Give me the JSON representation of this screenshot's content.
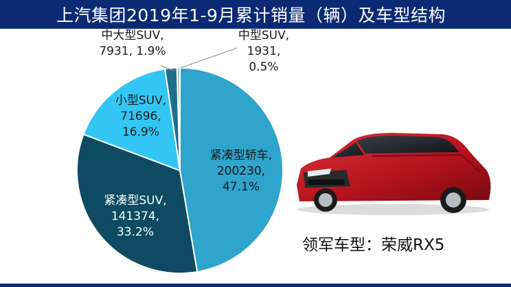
{
  "header": {
    "title": "上汽集团2019年1-9月累计销量（辆）及车型结构"
  },
  "caption": "领军车型：荣威RX5",
  "chart_data": {
    "type": "pie",
    "title": "上汽集团2019年1-9月累计销量（辆）及车型结构",
    "slices": [
      {
        "name": "紧凑型轿车",
        "value": 200230,
        "percent": "47.1%",
        "color": "#2fa4cc"
      },
      {
        "name": "紧凑型SUV",
        "value": 141374,
        "percent": "33.2%",
        "color": "#0e4b63"
      },
      {
        "name": "小型SUV",
        "value": 71696,
        "percent": "16.9%",
        "color": "#33c6f4"
      },
      {
        "name": "中大型SUV",
        "value": 7931,
        "percent": "1.9%",
        "color": "#1d6f8c"
      },
      {
        "name": "中型SUV",
        "value": 1931,
        "percent": "0.5%",
        "color": "#b9b9b9"
      }
    ],
    "labels": [
      {
        "lines": [
          "紧凑型轿车,",
          "200230,",
          "47.1%"
        ]
      },
      {
        "lines": [
          "紧凑型SUV,",
          "141374,",
          "33.2%"
        ]
      },
      {
        "lines": [
          "小型SUV,",
          "71696,",
          "16.9%"
        ]
      },
      {
        "lines": [
          "中大型SUV,",
          "7931, 1.9%"
        ]
      },
      {
        "lines": [
          "中型SUV,",
          "1931,",
          "0.5%"
        ]
      }
    ]
  }
}
